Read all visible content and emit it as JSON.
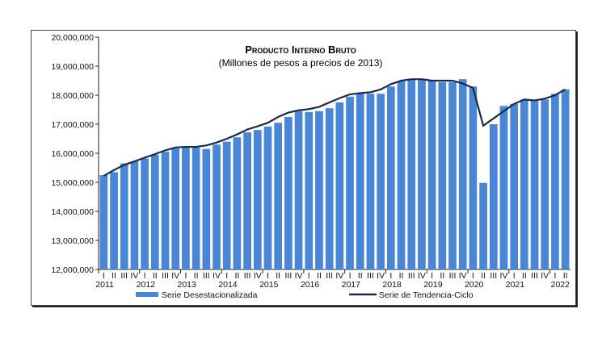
{
  "chart_data": {
    "type": "bar+line",
    "title": "Producto Interno Bruto",
    "subtitle": "(Millones de pesos a precios de 2013)",
    "ylim": [
      12000000,
      20000000
    ],
    "yticks": [
      "12,000,000",
      "13,000,000",
      "14,000,000",
      "15,000,000",
      "16,000,000",
      "17,000,000",
      "18,000,000",
      "19,000,000",
      "20,000,000"
    ],
    "quarter_labels": [
      "I",
      "II",
      "III",
      "IV"
    ],
    "years": [
      "2011",
      "2012",
      "2013",
      "2014",
      "2015",
      "2016",
      "2017",
      "2018",
      "2019",
      "2020",
      "2021",
      "2022"
    ],
    "legend_placement": "bottom",
    "series": [
      {
        "name": "Serie Desestacionalizada",
        "type": "bar",
        "color": "#4a86d6",
        "values": [
          15250000,
          15350000,
          15650000,
          15720000,
          15820000,
          15950000,
          16050000,
          16170000,
          16200000,
          16200000,
          16150000,
          16300000,
          16400000,
          16550000,
          16720000,
          16800000,
          16920000,
          17050000,
          17250000,
          17450000,
          17420000,
          17450000,
          17550000,
          17750000,
          17950000,
          18050000,
          18050000,
          18050000,
          18300000,
          18480000,
          18550000,
          18550000,
          18500000,
          18450000,
          18450000,
          18550000,
          18300000,
          14980000,
          17000000,
          17630000,
          17700000,
          17850000,
          17800000,
          17850000,
          18050000,
          18200000
        ]
      },
      {
        "name": "Serie de Tendencia-Ciclo",
        "type": "line",
        "color": "#1a2a4a",
        "values": [
          15220000,
          15420000,
          15600000,
          15720000,
          15850000,
          15970000,
          16100000,
          16200000,
          16220000,
          16220000,
          16270000,
          16370000,
          16500000,
          16650000,
          16820000,
          16930000,
          17050000,
          17250000,
          17400000,
          17480000,
          17520000,
          17600000,
          17750000,
          17900000,
          18030000,
          18070000,
          18100000,
          18200000,
          18380000,
          18500000,
          18550000,
          18550000,
          18500000,
          18500000,
          18500000,
          18400000,
          18250000,
          16950000,
          17200000,
          17450000,
          17700000,
          17850000,
          17820000,
          17880000,
          18000000,
          18200000
        ]
      }
    ]
  }
}
